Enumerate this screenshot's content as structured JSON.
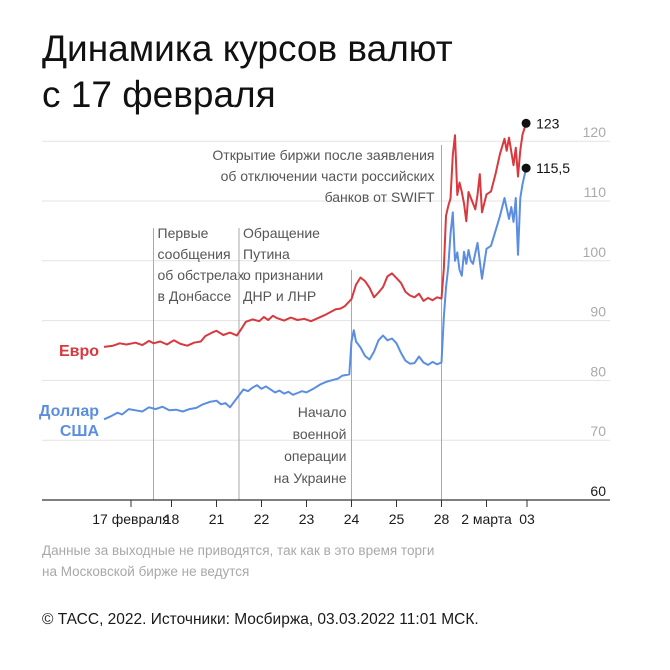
{
  "title": "Динамика курсов валют\nс 17 февраля",
  "footnote": "Данные за выходные не приводятся, так как в это время торги\nна Московской бирже не ведутся",
  "copyright": "© ТАСС, 2022. Источники: Мосбиржа, 03.03.2022 11:01 МСК.",
  "colors": {
    "euro": "#d8393f",
    "usd": "#5b8ee0",
    "grid": "#e3e3e3",
    "axis": "#333333",
    "tick_text": "#1a1a1a",
    "y_tick_text": "#aaaaaa",
    "annotation_text": "#555555",
    "event_line": "#aaaaaa"
  },
  "chart_data": {
    "type": "line",
    "ylim": [
      60,
      125
    ],
    "y_ticks": [
      60,
      70,
      80,
      90,
      100,
      110,
      120
    ],
    "x_ticks": [
      {
        "label": "17 февраля",
        "t": 0.6
      },
      {
        "label": "18",
        "t": 1.5
      },
      {
        "label": "21",
        "t": 2.5
      },
      {
        "label": "22",
        "t": 3.5
      },
      {
        "label": "23",
        "t": 4.5
      },
      {
        "label": "24",
        "t": 5.5
      },
      {
        "label": "25",
        "t": 6.5
      },
      {
        "label": "28",
        "t": 7.5
      },
      {
        "label": "2 марта",
        "t": 8.5
      },
      {
        "label": "03",
        "t": 9.4
      }
    ],
    "series": [
      {
        "name": "Евро",
        "end_label": "123",
        "points": [
          [
            0,
            85.6
          ],
          [
            0.2,
            85.8
          ],
          [
            0.35,
            86.2
          ],
          [
            0.5,
            86.0
          ],
          [
            0.7,
            86.3
          ],
          [
            0.85,
            85.9
          ],
          [
            1.0,
            86.6
          ],
          [
            1.1,
            86.2
          ],
          [
            1.25,
            86.5
          ],
          [
            1.4,
            86.0
          ],
          [
            1.55,
            86.7
          ],
          [
            1.7,
            86.1
          ],
          [
            1.85,
            85.8
          ],
          [
            2.0,
            86.3
          ],
          [
            2.15,
            86.5
          ],
          [
            2.25,
            87.4
          ],
          [
            2.4,
            88.0
          ],
          [
            2.5,
            88.3
          ],
          [
            2.65,
            87.6
          ],
          [
            2.8,
            88.0
          ],
          [
            2.95,
            87.5
          ],
          [
            3.05,
            88.6
          ],
          [
            3.15,
            89.8
          ],
          [
            3.3,
            90.2
          ],
          [
            3.45,
            89.9
          ],
          [
            3.55,
            90.6
          ],
          [
            3.65,
            90.1
          ],
          [
            3.75,
            90.8
          ],
          [
            3.85,
            90.4
          ],
          [
            4.0,
            90.0
          ],
          [
            4.15,
            90.5
          ],
          [
            4.3,
            90.1
          ],
          [
            4.45,
            90.3
          ],
          [
            4.6,
            89.9
          ],
          [
            4.75,
            90.4
          ],
          [
            4.9,
            90.9
          ],
          [
            5.05,
            91.5
          ],
          [
            5.15,
            91.9
          ],
          [
            5.25,
            92.0
          ],
          [
            5.35,
            92.4
          ],
          [
            5.5,
            93.6
          ],
          [
            5.6,
            96.0
          ],
          [
            5.7,
            97.2
          ],
          [
            5.8,
            96.6
          ],
          [
            5.9,
            95.5
          ],
          [
            6.0,
            93.9
          ],
          [
            6.1,
            94.7
          ],
          [
            6.2,
            95.6
          ],
          [
            6.3,
            97.4
          ],
          [
            6.4,
            97.9
          ],
          [
            6.5,
            97.1
          ],
          [
            6.6,
            96.3
          ],
          [
            6.7,
            94.8
          ],
          [
            6.8,
            94.2
          ],
          [
            6.9,
            93.9
          ],
          [
            7.0,
            94.5
          ],
          [
            7.1,
            93.3
          ],
          [
            7.2,
            93.8
          ],
          [
            7.3,
            93.4
          ],
          [
            7.4,
            93.9
          ],
          [
            7.5,
            93.7
          ],
          [
            7.55,
            98.6
          ],
          [
            7.6,
            107.5
          ],
          [
            7.65,
            109.2
          ],
          [
            7.7,
            110.4
          ],
          [
            7.75,
            117.7
          ],
          [
            7.8,
            121.0
          ],
          [
            7.85,
            111.0
          ],
          [
            7.9,
            113.1
          ],
          [
            7.95,
            111.5
          ],
          [
            8.0,
            109.6
          ],
          [
            8.05,
            106.6
          ],
          [
            8.1,
            111.5
          ],
          [
            8.2,
            109.6
          ],
          [
            8.25,
            108.6
          ],
          [
            8.3,
            111.0
          ],
          [
            8.35,
            114.5
          ],
          [
            8.4,
            108.1
          ],
          [
            8.5,
            111.1
          ],
          [
            8.6,
            111.6
          ],
          [
            8.7,
            114.5
          ],
          [
            8.8,
            117.9
          ],
          [
            8.9,
            120.4
          ],
          [
            8.95,
            118.4
          ],
          [
            9.0,
            120.6
          ],
          [
            9.1,
            116.0
          ],
          [
            9.15,
            118.9
          ],
          [
            9.2,
            114.1
          ],
          [
            9.25,
            118.5
          ],
          [
            9.3,
            121.1
          ],
          [
            9.38,
            123.0
          ]
        ]
      },
      {
        "name": "Доллар США",
        "end_label": "115,5",
        "points": [
          [
            0,
            73.5
          ],
          [
            0.15,
            74.0
          ],
          [
            0.3,
            74.6
          ],
          [
            0.4,
            74.3
          ],
          [
            0.55,
            75.2
          ],
          [
            0.7,
            75.0
          ],
          [
            0.85,
            74.8
          ],
          [
            1.0,
            75.5
          ],
          [
            1.15,
            75.2
          ],
          [
            1.3,
            75.6
          ],
          [
            1.45,
            75.0
          ],
          [
            1.6,
            75.1
          ],
          [
            1.75,
            74.8
          ],
          [
            1.9,
            75.2
          ],
          [
            2.05,
            75.4
          ],
          [
            2.2,
            76.0
          ],
          [
            2.35,
            76.4
          ],
          [
            2.5,
            76.6
          ],
          [
            2.6,
            76.0
          ],
          [
            2.7,
            76.2
          ],
          [
            2.8,
            75.5
          ],
          [
            2.9,
            76.5
          ],
          [
            3.0,
            77.5
          ],
          [
            3.1,
            78.5
          ],
          [
            3.2,
            78.2
          ],
          [
            3.3,
            78.8
          ],
          [
            3.4,
            79.2
          ],
          [
            3.5,
            78.6
          ],
          [
            3.6,
            79.0
          ],
          [
            3.7,
            78.5
          ],
          [
            3.8,
            78.0
          ],
          [
            3.9,
            78.3
          ],
          [
            4.0,
            77.8
          ],
          [
            4.1,
            78.1
          ],
          [
            4.2,
            77.6
          ],
          [
            4.3,
            77.9
          ],
          [
            4.4,
            78.2
          ],
          [
            4.5,
            78.0
          ],
          [
            4.65,
            78.6
          ],
          [
            4.8,
            79.3
          ],
          [
            4.95,
            79.8
          ],
          [
            5.1,
            80.1
          ],
          [
            5.2,
            80.3
          ],
          [
            5.3,
            80.8
          ],
          [
            5.45,
            81.0
          ],
          [
            5.5,
            86.5
          ],
          [
            5.55,
            88.4
          ],
          [
            5.6,
            86.5
          ],
          [
            5.7,
            85.5
          ],
          [
            5.8,
            84.1
          ],
          [
            5.9,
            83.5
          ],
          [
            6.0,
            84.8
          ],
          [
            6.1,
            86.7
          ],
          [
            6.2,
            87.5
          ],
          [
            6.3,
            86.7
          ],
          [
            6.4,
            87.0
          ],
          [
            6.5,
            86.2
          ],
          [
            6.6,
            84.6
          ],
          [
            6.7,
            83.3
          ],
          [
            6.8,
            82.8
          ],
          [
            6.9,
            82.9
          ],
          [
            7.0,
            84.0
          ],
          [
            7.1,
            83.0
          ],
          [
            7.2,
            82.6
          ],
          [
            7.3,
            83.1
          ],
          [
            7.4,
            82.7
          ],
          [
            7.5,
            83.0
          ],
          [
            7.55,
            90.5
          ],
          [
            7.6,
            95.5
          ],
          [
            7.65,
            99.0
          ],
          [
            7.7,
            104.5
          ],
          [
            7.75,
            108.1
          ],
          [
            7.8,
            100.0
          ],
          [
            7.85,
            101.4
          ],
          [
            7.9,
            98.5
          ],
          [
            7.95,
            97.5
          ],
          [
            8.0,
            101.5
          ],
          [
            8.05,
            99.5
          ],
          [
            8.1,
            101.8
          ],
          [
            8.15,
            100.0
          ],
          [
            8.2,
            99.5
          ],
          [
            8.3,
            103.0
          ],
          [
            8.4,
            97.0
          ],
          [
            8.5,
            102.0
          ],
          [
            8.6,
            102.5
          ],
          [
            8.7,
            105.0
          ],
          [
            8.8,
            107.5
          ],
          [
            8.9,
            110.5
          ],
          [
            9.0,
            107.0
          ],
          [
            9.05,
            109.0
          ],
          [
            9.1,
            106.5
          ],
          [
            9.15,
            110.5
          ],
          [
            9.2,
            101.0
          ],
          [
            9.25,
            110.5
          ],
          [
            9.3,
            112.8
          ],
          [
            9.38,
            115.5
          ]
        ]
      }
    ],
    "annotations": [
      {
        "text": "Первые\nсообщения\nоб обстрелах\nв Донбассе",
        "t": 1.1,
        "anchor": "top"
      },
      {
        "text": "Обращение\nПутина\nо признании\nДНР и ЛНР",
        "t": 3.0,
        "anchor": "top"
      },
      {
        "text": "Начало\nвоенной\nоперации\nна Украине",
        "t": 5.5,
        "anchor": "bottom"
      },
      {
        "text": "Открытие биржи после заявления\nоб отключении части российских\nбанков от SWIFT",
        "t": 7.5,
        "anchor": "top-left"
      }
    ]
  }
}
